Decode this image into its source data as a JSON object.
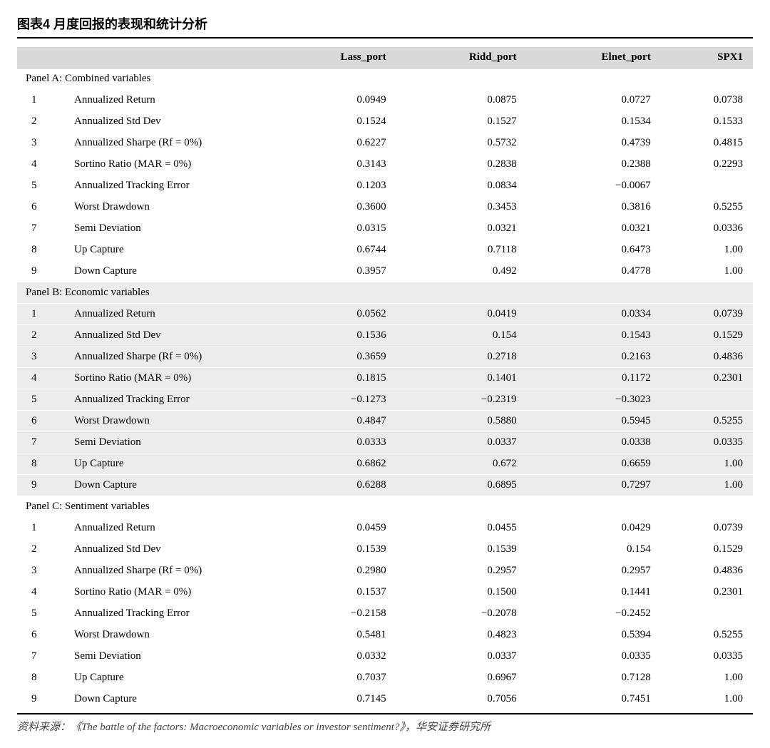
{
  "title": "图表4 月度回报的表现和统计分析",
  "columns": [
    "Lass_port",
    "Ridd_port",
    "Elnet_port",
    "SPX1"
  ],
  "metrics": [
    "Annualized Return",
    "Annualized Std Dev",
    "Annualized Sharpe (Rf = 0%)",
    "Sortino Ratio (MAR = 0%)",
    "Annualized Tracking Error",
    "Worst Drawdown",
    "Semi Deviation",
    "Up Capture",
    "Down Capture"
  ],
  "panels": [
    {
      "label": "Panel A: Combined variables",
      "shaded": false,
      "rows": [
        [
          "0.0949",
          "0.0875",
          "0.0727",
          "0.0738"
        ],
        [
          "0.1524",
          "0.1527",
          "0.1534",
          "0.1533"
        ],
        [
          "0.6227",
          "0.5732",
          "0.4739",
          "0.4815"
        ],
        [
          "0.3143",
          "0.2838",
          "0.2388",
          "0.2293"
        ],
        [
          "0.1203",
          "0.0834",
          "−0.0067",
          ""
        ],
        [
          "0.3600",
          "0.3453",
          "0.3816",
          "0.5255"
        ],
        [
          "0.0315",
          "0.0321",
          "0.0321",
          "0.0336"
        ],
        [
          "0.6744",
          "0.7118",
          "0.6473",
          "1.00"
        ],
        [
          "0.3957",
          "0.492",
          "0.4778",
          "1.00"
        ]
      ]
    },
    {
      "label": "Panel B: Economic variables",
      "shaded": true,
      "rows": [
        [
          "0.0562",
          "0.0419",
          "0.0334",
          "0.0739"
        ],
        [
          "0.1536",
          "0.154",
          "0.1543",
          "0.1529"
        ],
        [
          "0.3659",
          "0.2718",
          "0.2163",
          "0.4836"
        ],
        [
          "0.1815",
          "0.1401",
          "0.1172",
          "0.2301"
        ],
        [
          "−0.1273",
          "−0.2319",
          "−0.3023",
          ""
        ],
        [
          "0.4847",
          "0.5880",
          "0.5945",
          "0.5255"
        ],
        [
          "0.0333",
          "0.0337",
          "0.0338",
          "0.0335"
        ],
        [
          "0.6862",
          "0.672",
          "0.6659",
          "1.00"
        ],
        [
          "0.6288",
          "0.6895",
          "0.7297",
          "1.00"
        ]
      ]
    },
    {
      "label": "Panel C: Sentiment variables",
      "shaded": false,
      "rows": [
        [
          "0.0459",
          "0.0455",
          "0.0429",
          "0.0739"
        ],
        [
          "0.1539",
          "0.1539",
          "0.154",
          "0.1529"
        ],
        [
          "0.2980",
          "0.2957",
          "0.2957",
          "0.4836"
        ],
        [
          "0.1537",
          "0.1500",
          "0.1441",
          "0.2301"
        ],
        [
          "−0.2158",
          "−0.2078",
          "−0.2452",
          ""
        ],
        [
          "0.5481",
          "0.4823",
          "0.5394",
          "0.5255"
        ],
        [
          "0.0332",
          "0.0337",
          "0.0335",
          "0.0335"
        ],
        [
          "0.7037",
          "0.6967",
          "0.7128",
          "1.00"
        ],
        [
          "0.7145",
          "0.7056",
          "0.7451",
          "1.00"
        ]
      ]
    }
  ],
  "source": "资料来源：《The battle of the factors: Macroeconomic variables or investor sentiment?》，华安证券研究所",
  "style": {
    "header_bg": "#d9d9d9",
    "shade_bg": "#ececec",
    "title_fontsize": 18,
    "body_fontsize": 15,
    "col_widths": {
      "idx": 40,
      "metric": 260
    }
  }
}
